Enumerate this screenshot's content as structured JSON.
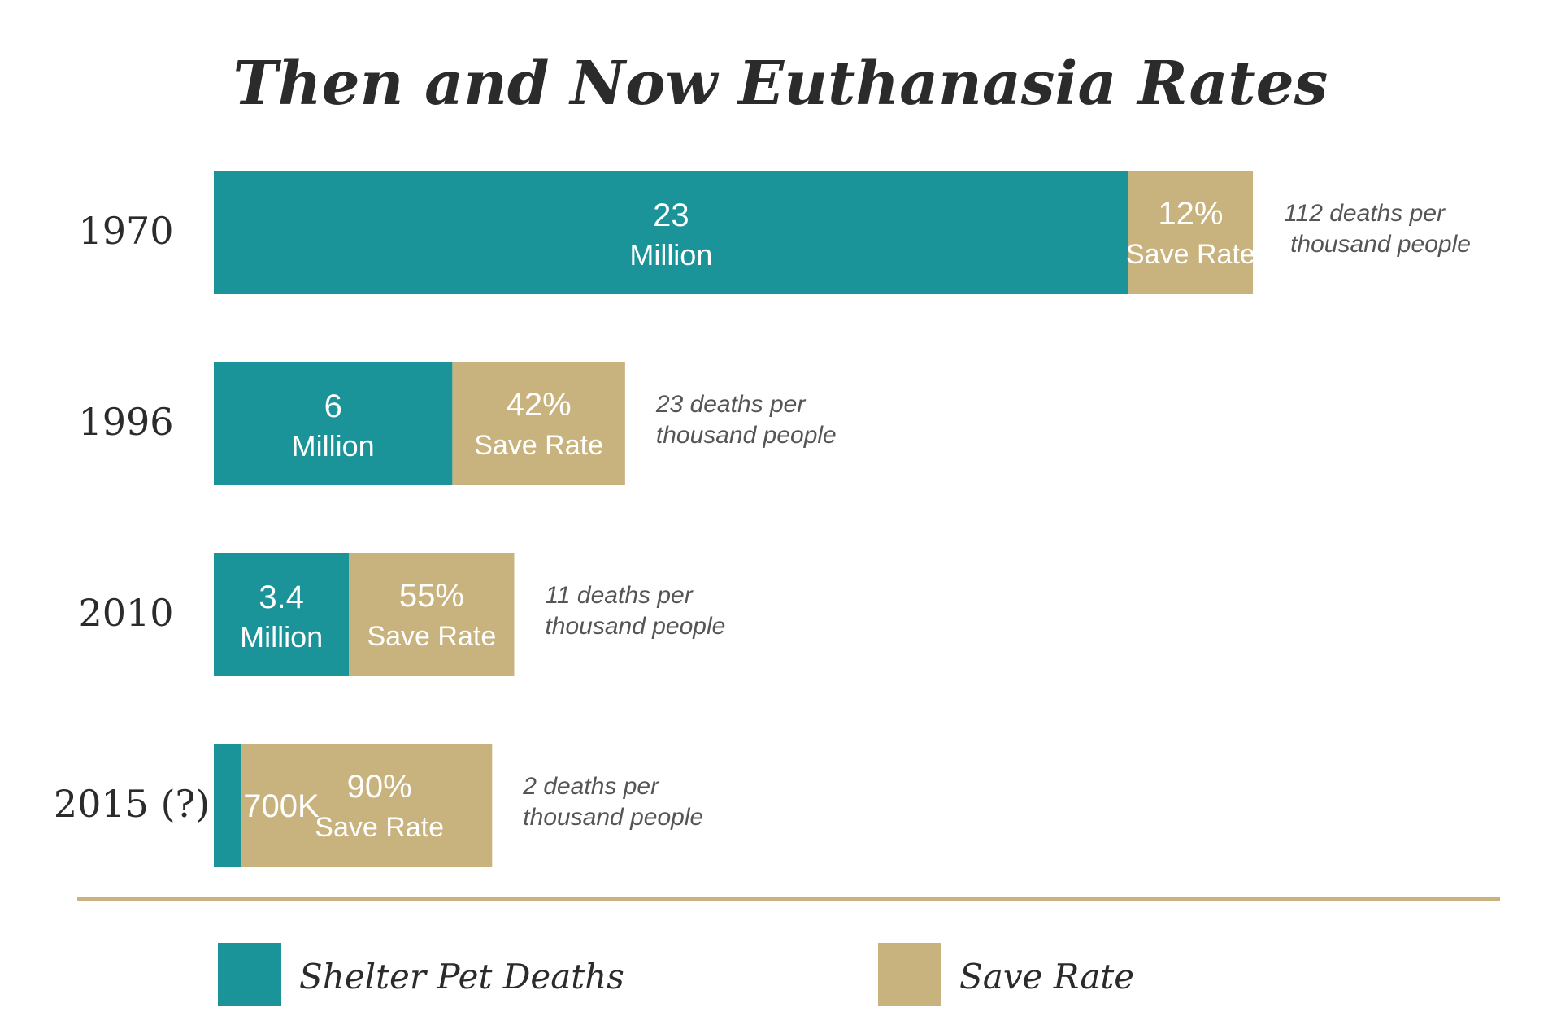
{
  "colors": {
    "deaths": "#1a9399",
    "save": "#c8b27e",
    "divider": "#c8b27e"
  },
  "chart_data": {
    "type": "bar",
    "title": "Then and Now Euthanasia Rates",
    "categories": [
      "1970",
      "1996",
      "2010",
      "2015 (?)"
    ],
    "series": [
      {
        "name": "Shelter Pet Deaths",
        "values": [
          23,
          6,
          3.4,
          0.7
        ]
      },
      {
        "name": "Save Rate",
        "values": [
          12,
          42,
          55,
          90
        ]
      }
    ],
    "rows": [
      {
        "year": "1970",
        "deaths_line1": "23",
        "deaths_line2": "Million",
        "save_line1": "12%",
        "save_line2": "Save Rate",
        "note_line1": "112 deaths per",
        "note_line2": "thousand people"
      },
      {
        "year": "1996",
        "deaths_line1": "6",
        "deaths_line2": "Million",
        "save_line1": "42%",
        "save_line2": "Save Rate",
        "note_line1": "23 deaths per",
        "note_line2": "thousand people"
      },
      {
        "year": "2010",
        "deaths_line1": "3.4",
        "deaths_line2": "Million",
        "save_line1": "55%",
        "save_line2": "Save Rate",
        "note_line1": "11 deaths per",
        "note_line2": "thousand people"
      },
      {
        "year": "2015 (?)",
        "deaths_line1": "700K",
        "deaths_line2": "",
        "save_line1": "90%",
        "save_line2": "Save Rate",
        "note_line1": "2 deaths per",
        "note_line2": "thousand people"
      }
    ],
    "legend": [
      {
        "label": "Shelter Pet Deaths",
        "color": "#1a9399"
      },
      {
        "label": "Save Rate",
        "color": "#c8b27e"
      }
    ]
  }
}
